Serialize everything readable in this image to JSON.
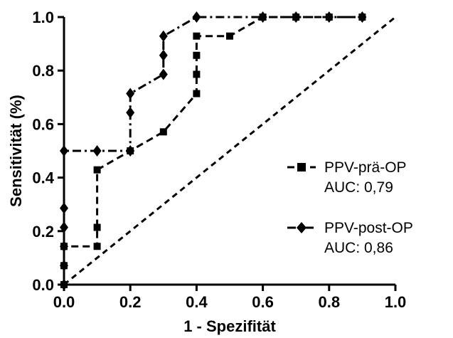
{
  "chart_data": {
    "type": "line",
    "xlabel": "1 - Spezifität",
    "ylabel": "Sensitivität (%)",
    "xlim": [
      0,
      1
    ],
    "ylim": [
      0,
      1
    ],
    "x_ticks": [
      "0.0",
      "0.2",
      "0.4",
      "0.6",
      "0.8",
      "1.0"
    ],
    "y_ticks": [
      "0.0",
      "0.2",
      "0.4",
      "0.6",
      "0.8",
      "1.0"
    ],
    "x_tick_values": [
      0,
      0.2,
      0.4,
      0.6,
      0.8,
      1.0
    ],
    "y_tick_values": [
      0,
      0.2,
      0.4,
      0.6,
      0.8,
      1.0
    ],
    "grid": false,
    "legend_position": "right",
    "reference_line": {
      "x": [
        0,
        1
      ],
      "y": [
        0,
        1
      ],
      "style": "dashed"
    },
    "series": [
      {
        "name": "PPV-prä-OP",
        "auc": "AUC: 0,79",
        "marker": "square",
        "style": "dashed",
        "x": [
          0,
          0,
          0,
          0,
          0.1,
          0.1,
          0.1,
          0.2,
          0.3,
          0.4,
          0.4,
          0.4,
          0.4,
          0.5,
          0.6,
          0.7,
          0.8,
          0.9
        ],
        "y": [
          0,
          0.071,
          0.143,
          0.143,
          0.143,
          0.214,
          0.429,
          0.5,
          0.571,
          0.714,
          0.786,
          0.857,
          0.929,
          0.929,
          1.0,
          1.0,
          1.0,
          1.0
        ]
      },
      {
        "name": "PPV-post-OP",
        "auc": "AUC: 0,86",
        "marker": "diamond",
        "style": "dashdot",
        "x": [
          0,
          0,
          0,
          0,
          0,
          0,
          0.1,
          0.2,
          0.2,
          0.2,
          0.3,
          0.3,
          0.3,
          0.4,
          0.6,
          0.7,
          0.8,
          0.9
        ],
        "y": [
          0,
          0.071,
          0.143,
          0.214,
          0.286,
          0.5,
          0.5,
          0.5,
          0.643,
          0.714,
          0.786,
          0.857,
          0.929,
          1.0,
          1.0,
          1.0,
          1.0,
          1.0
        ]
      }
    ]
  }
}
